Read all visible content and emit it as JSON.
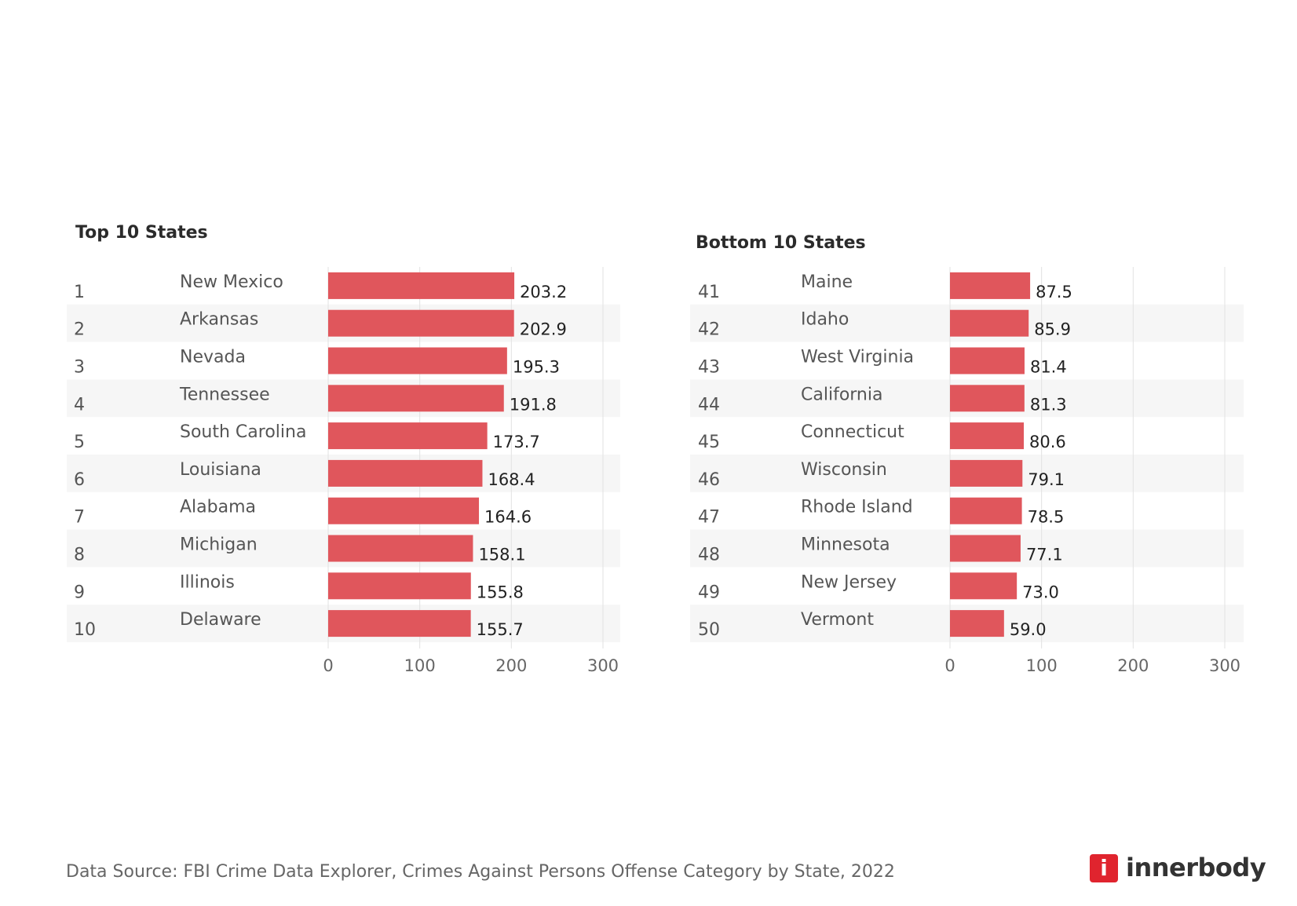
{
  "chart_data": [
    {
      "type": "bar",
      "title": "Top 10 States",
      "orientation": "horizontal",
      "ranks": [
        "1",
        "2",
        "3",
        "4",
        "5",
        "6",
        "7",
        "8",
        "9",
        "10"
      ],
      "categories": [
        "New Mexico",
        "Arkansas",
        "Nevada",
        "Tennessee",
        "South Carolina",
        "Louisiana",
        "Alabama",
        "Michigan",
        "Illinois",
        "Delaware"
      ],
      "values": [
        203.2,
        202.9,
        195.3,
        191.8,
        173.7,
        168.4,
        164.6,
        158.1,
        155.8,
        155.7
      ],
      "value_labels": [
        "203.2",
        "202.9",
        "195.3",
        "191.8",
        "173.7",
        "168.4",
        "164.6",
        "158.1",
        "155.8",
        "155.7"
      ],
      "xlim": [
        0,
        300
      ],
      "xticks": [
        "0",
        "100",
        "200",
        "300"
      ],
      "bar_color": "#e0565c",
      "stripe_color": "#f6f6f6"
    },
    {
      "type": "bar",
      "title": "Bottom 10 States",
      "orientation": "horizontal",
      "ranks": [
        "41",
        "42",
        "43",
        "44",
        "45",
        "46",
        "47",
        "48",
        "49",
        "50"
      ],
      "categories": [
        "Maine",
        "Idaho",
        "West Virginia",
        "California",
        "Connecticut",
        "Wisconsin",
        "Rhode Island",
        "Minnesota",
        "New Jersey",
        "Vermont"
      ],
      "values": [
        87.5,
        85.9,
        81.4,
        81.3,
        80.6,
        79.1,
        78.5,
        77.1,
        73.0,
        59.0
      ],
      "value_labels": [
        "87.5",
        "85.9",
        "81.4",
        "81.3",
        "80.6",
        "79.1",
        "78.5",
        "77.1",
        "73.0",
        "59.0"
      ],
      "xlim": [
        0,
        300
      ],
      "xticks": [
        "0",
        "100",
        "200",
        "300"
      ],
      "bar_color": "#e0565c",
      "stripe_color": "#f6f6f6"
    }
  ],
  "footer": {
    "source": "Data Source: FBI Crime Data Explorer, Crimes Against Persons Offense Category by State, 2022"
  },
  "logo": {
    "mark": "i",
    "text": "innerbody",
    "color": "#e0242e"
  }
}
